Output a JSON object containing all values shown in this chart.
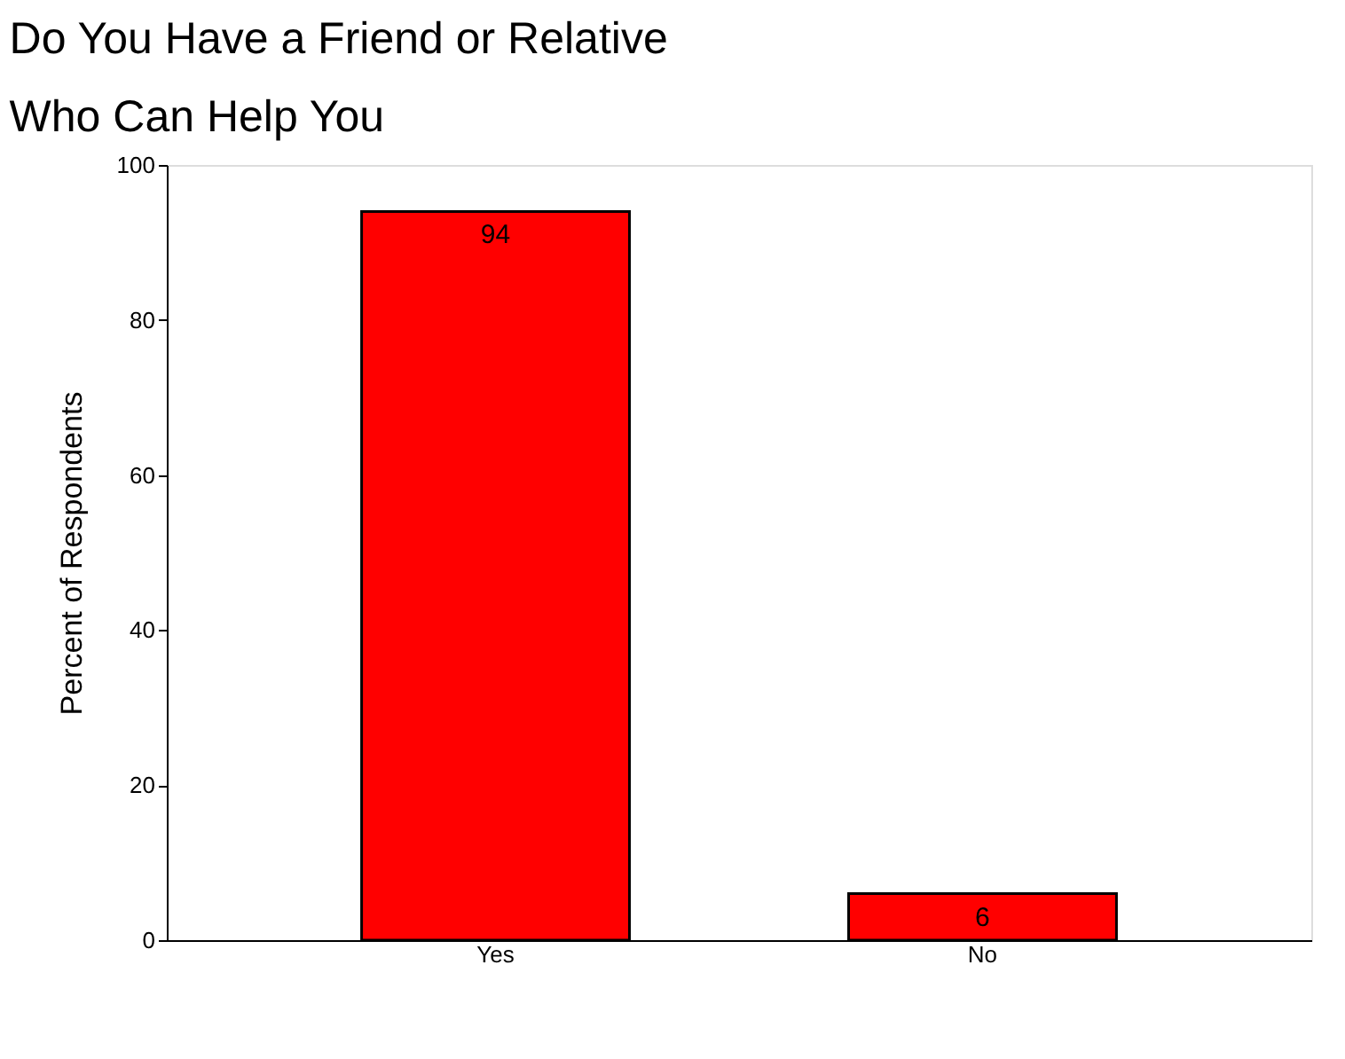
{
  "chart_data": {
    "type": "bar",
    "title": [
      "Do You Have a Friend or Relative",
      "Who Can Help You"
    ],
    "ylabel": "Percent of Respondents",
    "categories": [
      "Yes",
      "No"
    ],
    "values": [
      94,
      6
    ],
    "color": "#ff0000",
    "ylim": [
      0,
      100
    ],
    "yticks": [
      0,
      20,
      40,
      60,
      80,
      100
    ],
    "grid": false,
    "data_labels": true
  }
}
